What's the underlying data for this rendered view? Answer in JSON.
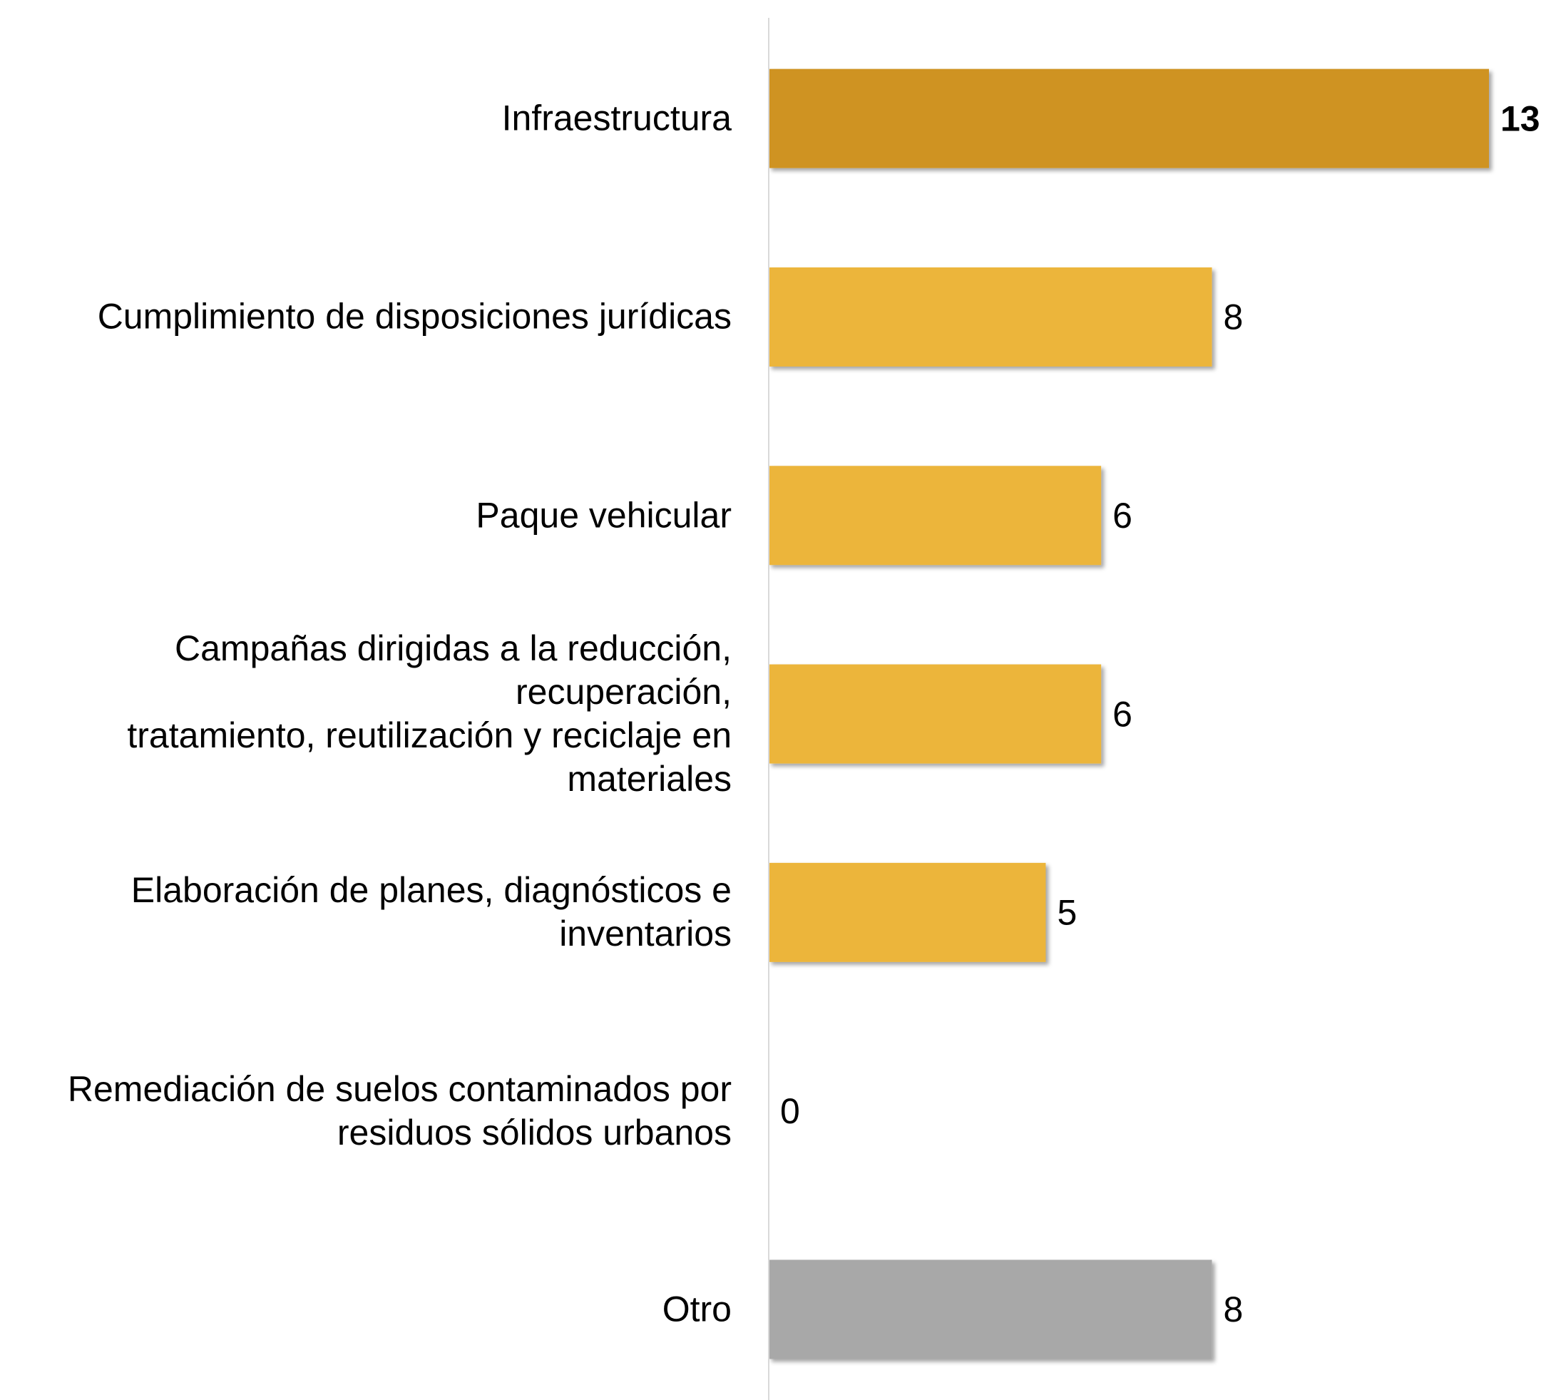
{
  "chart_data": {
    "type": "bar",
    "orientation": "horizontal",
    "categories": [
      "Infraestructura",
      "Cumplimiento de disposiciones jurídicas",
      "Paque vehicular",
      "Campañas dirigidas a la reducción,\nrecuperación,\ntratamiento, reutilización y reciclaje en\nmateriales",
      "Elaboración de planes, diagnósticos e\ninventarios",
      "Remediación de suelos contaminados por\nresiduos sólidos urbanos",
      "Otro"
    ],
    "values": [
      13,
      8,
      6,
      6,
      5,
      0,
      8
    ],
    "colors": [
      "#cf9322",
      "#ecb53a",
      "#ecb53a",
      "#ecb53a",
      "#ecb53a",
      "#ecb53a",
      "#a8a8a8"
    ],
    "bold_value_labels": [
      true,
      false,
      false,
      false,
      false,
      false,
      false
    ],
    "xlim": [
      0,
      13
    ]
  }
}
